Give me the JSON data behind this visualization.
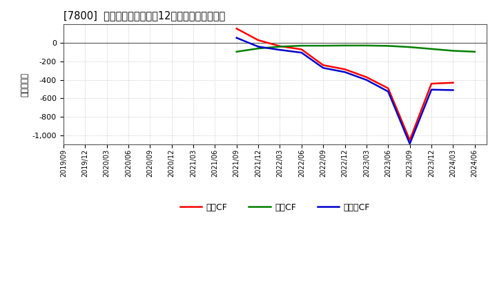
{
  "title": "[7800]  キャッシュフローの12か月移動合計の推移",
  "ylabel": "（百万円）",
  "background_color": "#ffffff",
  "plot_bg_color": "#ffffff",
  "grid_color": "#bbbbbb",
  "ylim": [
    -1100,
    200
  ],
  "yticks": [
    -1000,
    -800,
    -600,
    -400,
    -200,
    0
  ],
  "legend_labels": [
    "営業CF",
    "投資CF",
    "フリーCF"
  ],
  "legend_colors": [
    "#ff0000",
    "#008000",
    "#0000cc"
  ],
  "x_dates": [
    "2019/09",
    "2019/12",
    "2020/03",
    "2020/06",
    "2020/09",
    "2020/12",
    "2021/03",
    "2021/06",
    "2021/09",
    "2021/12",
    "2022/03",
    "2022/06",
    "2022/09",
    "2022/12",
    "2023/03",
    "2023/06",
    "2023/09",
    "2023/12",
    "2024/03",
    "2024/06"
  ],
  "operating_cf": [
    null,
    null,
    null,
    null,
    null,
    null,
    null,
    null,
    155,
    30,
    -35,
    -70,
    -240,
    -285,
    -370,
    -490,
    -1050,
    -440,
    -430,
    null
  ],
  "investing_cf": [
    null,
    null,
    null,
    null,
    null,
    null,
    null,
    null,
    -95,
    -60,
    -40,
    -30,
    -30,
    -28,
    -28,
    -32,
    -45,
    -65,
    -85,
    -95
  ],
  "free_cf": [
    null,
    null,
    null,
    null,
    null,
    null,
    null,
    null,
    55,
    -40,
    -75,
    -105,
    -270,
    -315,
    -400,
    -525,
    -1090,
    -505,
    -510,
    null
  ]
}
